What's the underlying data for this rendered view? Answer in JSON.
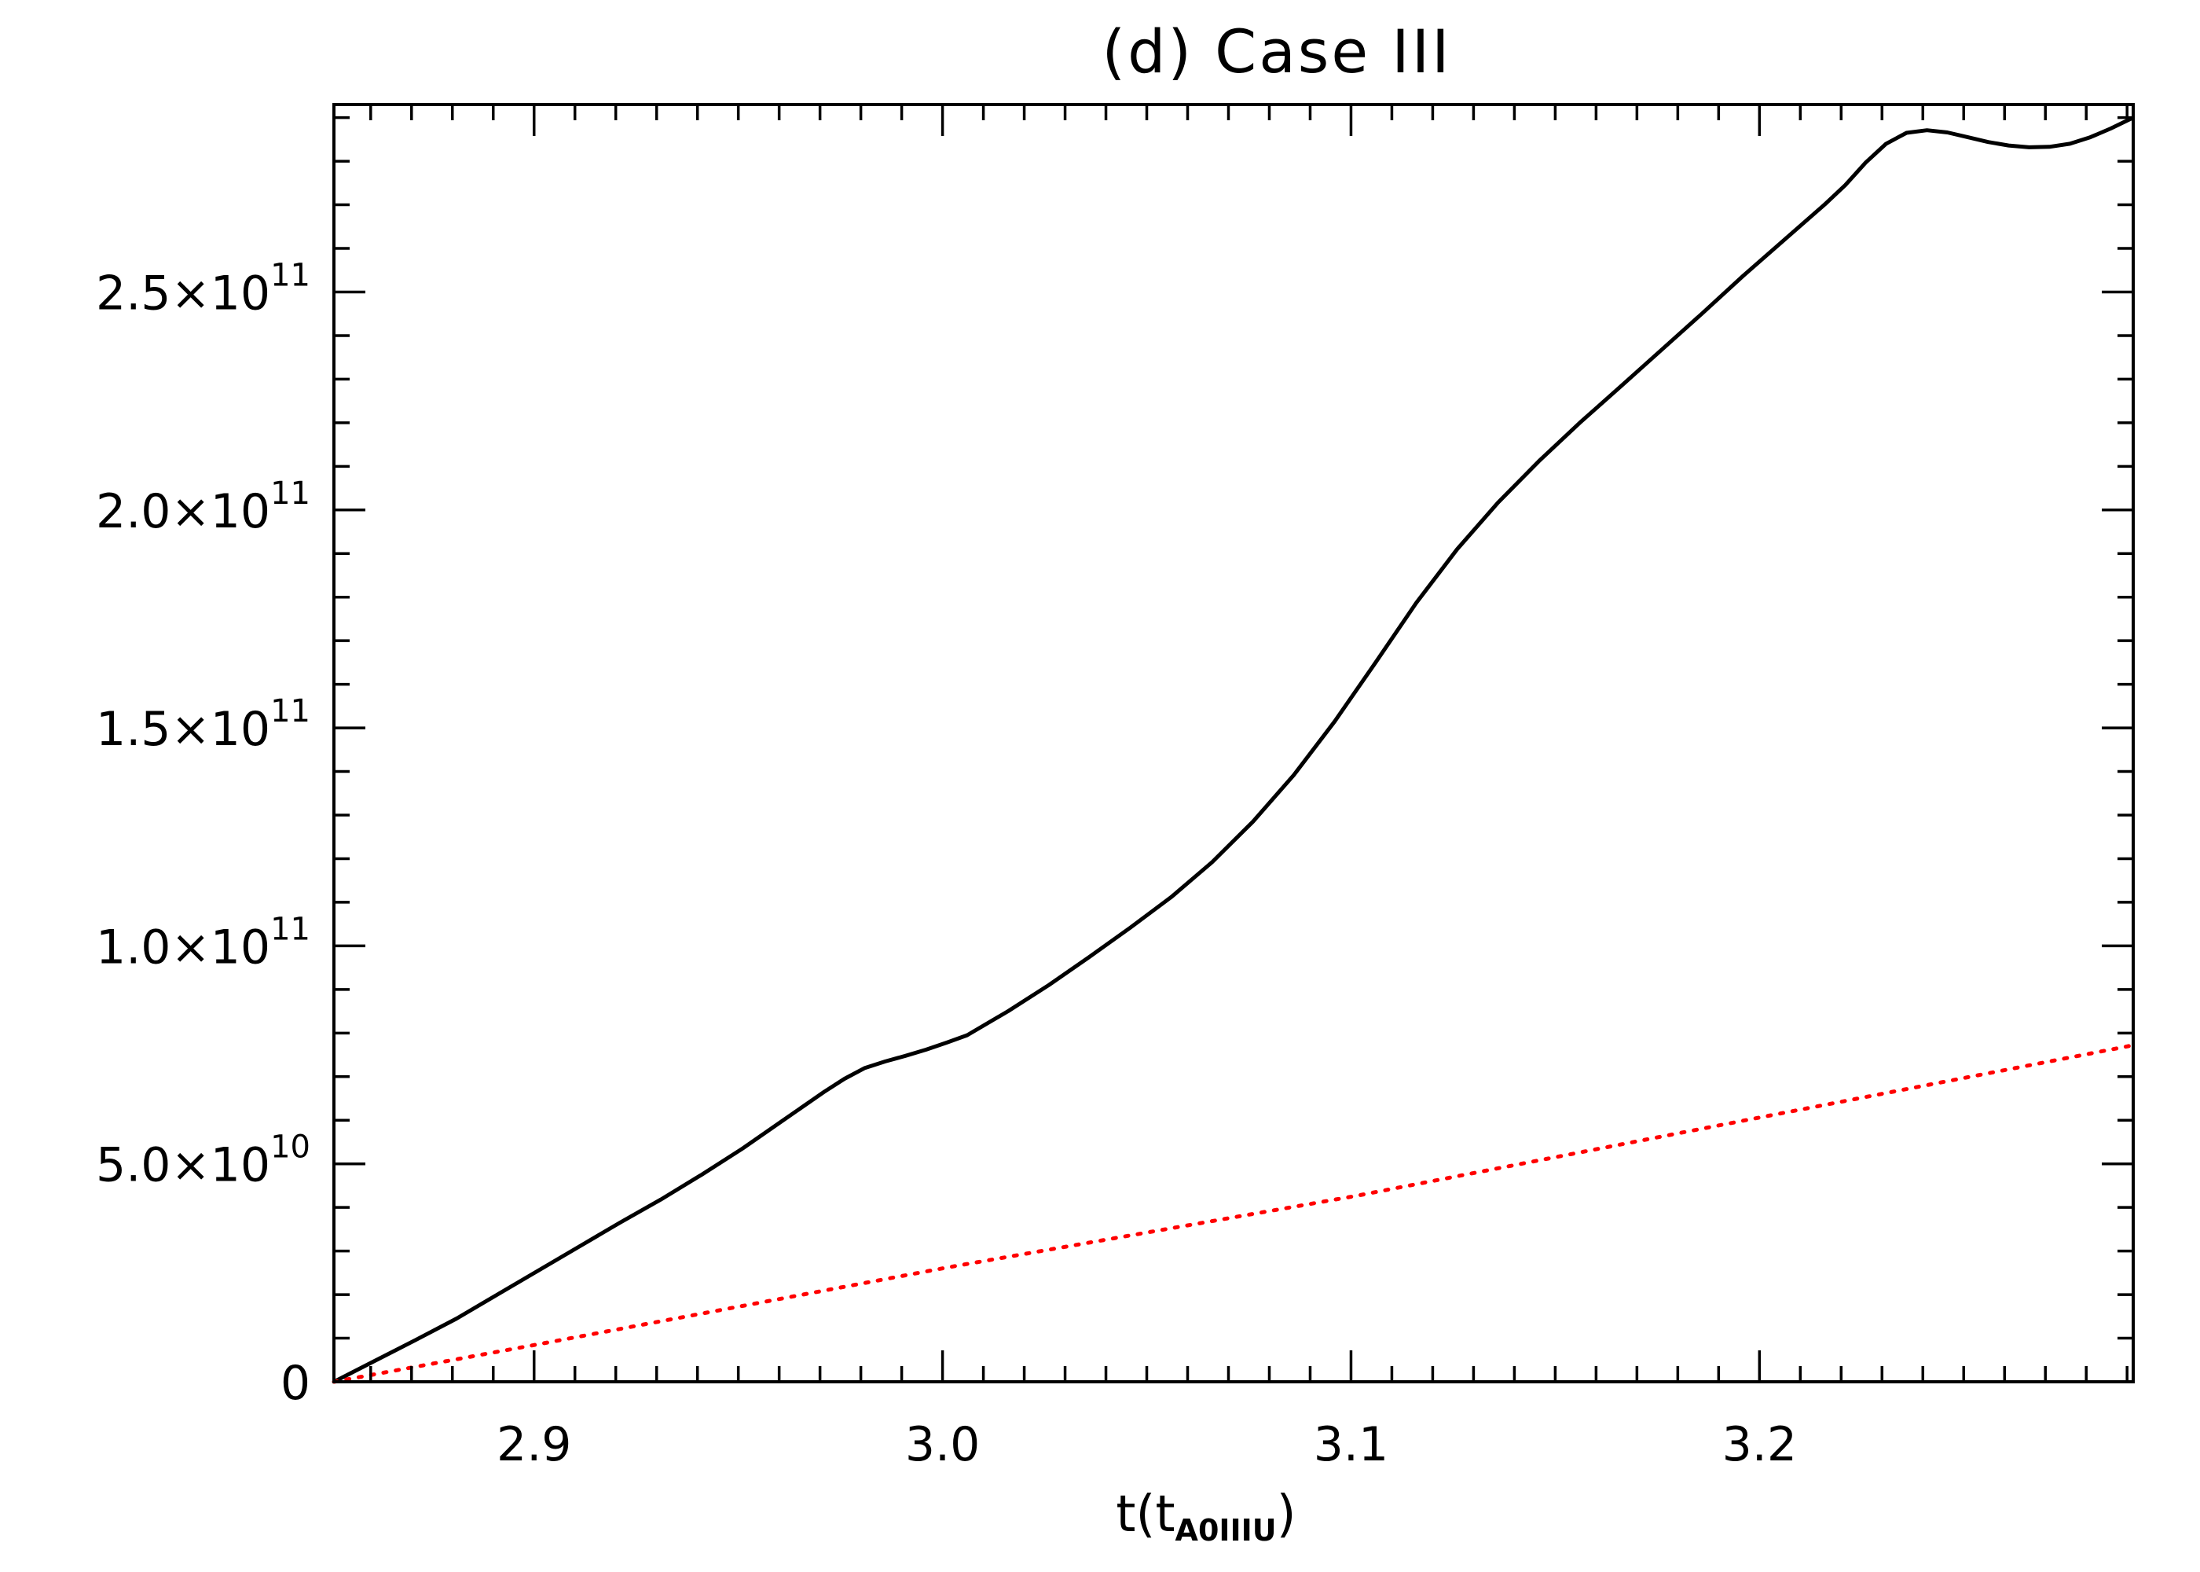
{
  "chart_data": {
    "type": "line",
    "title": "(d) Case III",
    "xlabel": {
      "main": "t(t",
      "sub": "A0IIIU",
      "close": ")"
    },
    "ylabel": "",
    "xlim": [
      2.851,
      3.2915
    ],
    "ylim": [
      0,
      293000000000.0
    ],
    "grid": false,
    "x_ticks": [
      {
        "value": 2.9,
        "label": "2.9"
      },
      {
        "value": 3.0,
        "label": "3.0"
      },
      {
        "value": 3.1,
        "label": "3.1"
      },
      {
        "value": 3.2,
        "label": "3.2"
      }
    ],
    "x_minor_step": 0.01,
    "y_ticks": [
      {
        "value": 0,
        "mantissa": "0",
        "exp": ""
      },
      {
        "value": 50000000000.0,
        "mantissa": "5.0×10",
        "exp": "10"
      },
      {
        "value": 100000000000.0,
        "mantissa": "1.0×10",
        "exp": "11"
      },
      {
        "value": 150000000000.0,
        "mantissa": "1.5×10",
        "exp": "11"
      },
      {
        "value": 200000000000.0,
        "mantissa": "2.0×10",
        "exp": "11"
      },
      {
        "value": 250000000000.0,
        "mantissa": "2.5×10",
        "exp": "11"
      }
    ],
    "y_minor_step": 10000000000.0,
    "series": [
      {
        "color": "#000000",
        "style": "solid",
        "x": [
          2.851,
          2.861,
          2.871,
          2.881,
          2.891,
          2.901,
          2.911,
          2.921,
          2.931,
          2.941,
          2.951,
          2.961,
          2.971,
          2.976,
          2.981,
          2.986,
          2.991,
          2.996,
          3.001,
          3.006,
          3.016,
          3.026,
          3.036,
          3.046,
          3.056,
          3.066,
          3.076,
          3.086,
          3.096,
          3.106,
          3.116,
          3.126,
          3.136,
          3.146,
          3.156,
          3.166,
          3.176,
          3.186,
          3.196,
          3.206,
          3.216,
          3.221,
          3.226,
          3.231,
          3.236,
          3.241,
          3.246,
          3.251,
          3.256,
          3.261,
          3.266,
          3.271,
          3.276,
          3.281,
          3.286,
          3.2915
        ],
        "y": [
          0,
          4800000000.0,
          9600000000.0,
          14500000000.0,
          20000000000.0,
          25500000000.0,
          31000000000.0,
          36500000000.0,
          41800000000.0,
          47500000000.0,
          53500000000.0,
          60000000000.0,
          66500000000.0,
          69500000000.0,
          72000000000.0,
          73500000000.0,
          74800000000.0,
          76200000000.0,
          77800000000.0,
          79500000000.0,
          85000000000.0,
          91000000000.0,
          97500000000.0,
          104200000000.0,
          111200000000.0,
          119200000000.0,
          128500000000.0,
          139200000000.0,
          151500000000.0,
          165000000000.0,
          178700000000.0,
          191000000000.0,
          201700000000.0,
          211200000000.0,
          220000000000.0,
          228300000000.0,
          236700000000.0,
          245100000000.0,
          253700000000.0,
          261900000000.0,
          270100000000.0,
          274500000000.0,
          279700000000.0,
          284000000000.0,
          286500000000.0,
          287100000000.0,
          286600000000.0,
          285500000000.0,
          284400000000.0,
          283600000000.0,
          283200000000.0,
          283300000000.0,
          284000000000.0,
          285500000000.0,
          287500000000.0,
          290000000000.0
        ]
      },
      {
        "color": "#ff0000",
        "style": "dotted",
        "x": [
          2.851,
          2.901,
          3.001,
          3.101,
          3.201,
          3.2915
        ],
        "y": [
          0,
          8600000000.0,
          26200000000.0,
          42600000000.0,
          60800000000.0,
          77200000000.0
        ]
      }
    ]
  }
}
